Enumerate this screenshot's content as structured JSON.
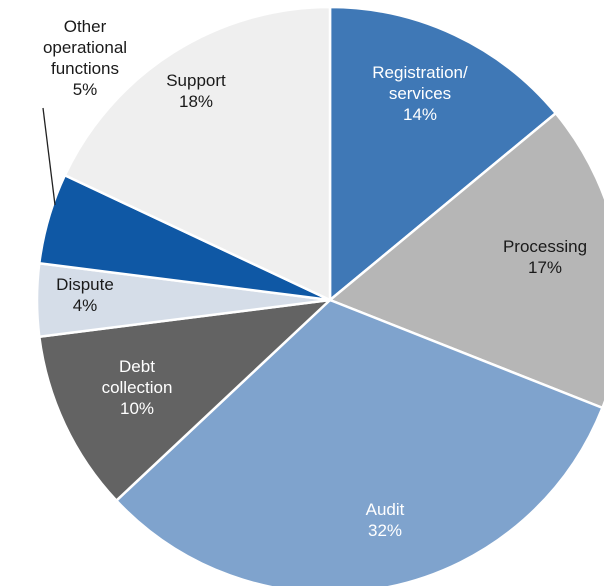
{
  "chart_data": {
    "type": "pie",
    "title": "",
    "slices": [
      {
        "label_lines": [
          "Registration/",
          "services"
        ],
        "pct_label": "14%",
        "value": 14,
        "color": "#3f78b6",
        "text_color": "#ffffff"
      },
      {
        "label_lines": [
          "Processing"
        ],
        "pct_label": "17%",
        "value": 17,
        "color": "#b6b6b6",
        "text_color": "#1a1a1a"
      },
      {
        "label_lines": [
          "Audit"
        ],
        "pct_label": "32%",
        "value": 32,
        "color": "#7fa3cd",
        "text_color": "#ffffff"
      },
      {
        "label_lines": [
          "Debt",
          "collection"
        ],
        "pct_label": "10%",
        "value": 10,
        "color": "#636363",
        "text_color": "#ffffff"
      },
      {
        "label_lines": [
          "Dispute"
        ],
        "pct_label": "4%",
        "value": 4,
        "color": "#d5dde8",
        "text_color": "#1a1a1a"
      },
      {
        "label_lines": [
          "Other",
          "operational",
          "functions"
        ],
        "pct_label": "5%",
        "value": 5,
        "color": "#0f58a5",
        "text_color": "#1a1a1a"
      },
      {
        "label_lines": [
          "Support"
        ],
        "pct_label": "18%",
        "value": 18,
        "color": "#efefef",
        "text_color": "#1a1a1a"
      }
    ]
  }
}
